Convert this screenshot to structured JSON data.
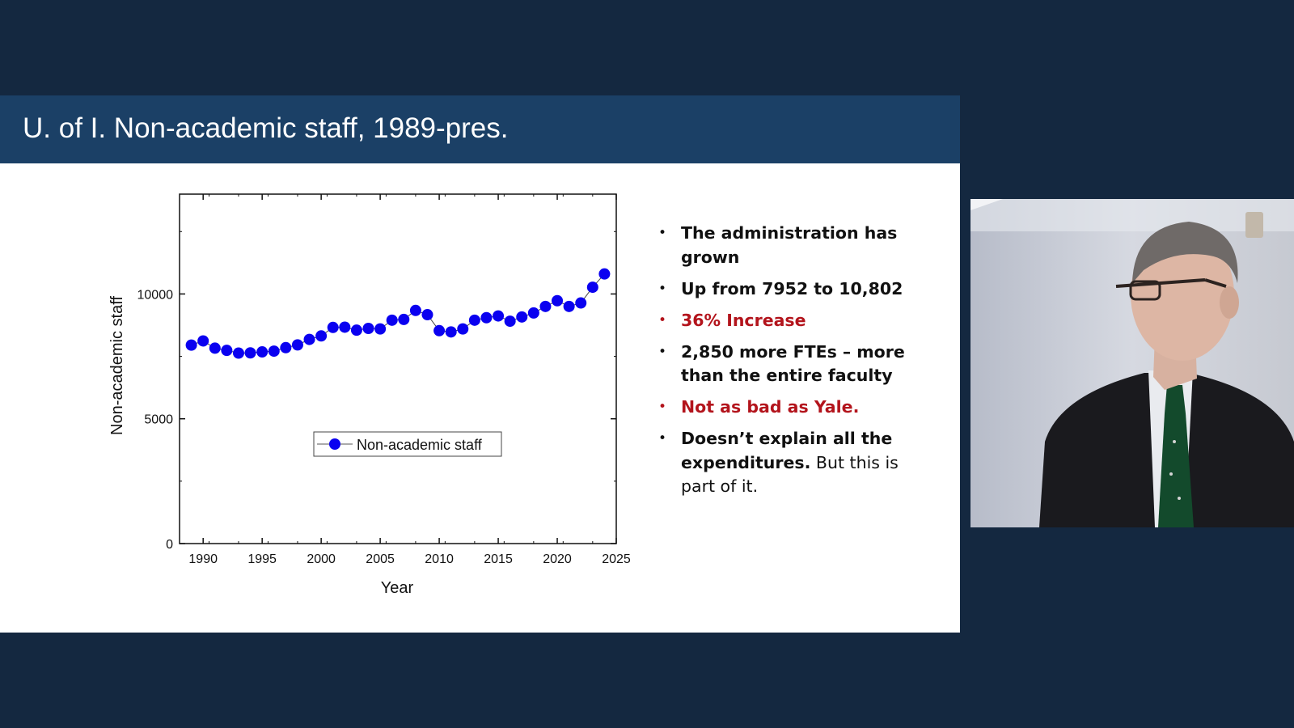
{
  "slide": {
    "title": "U. of I. Non-academic staff, 1989-pres."
  },
  "colors": {
    "background": "#142840",
    "title_bar": "#1b4066",
    "marker": "#0a00f0",
    "red_text": "#b3141c"
  },
  "bullets": [
    {
      "bold": "The administration has grown",
      "normal": "",
      "color": "dark"
    },
    {
      "bold": "Up from 7952 to 10,802",
      "normal": "",
      "color": "dark"
    },
    {
      "bold": "36% Increase",
      "normal": "",
      "color": "red"
    },
    {
      "bold": "2,850 more FTEs – more than the entire faculty",
      "normal": "",
      "color": "dark"
    },
    {
      "bold": "Not as bad as Yale.",
      "normal": "",
      "color": "red"
    },
    {
      "bold": "Doesn’t explain all the expenditures.",
      "normal": " But this is part of it.",
      "color": "dark"
    }
  ],
  "chart_data": {
    "type": "line",
    "xlabel": "Year",
    "ylabel": "Non-academic staff",
    "xlim": [
      1988,
      2025
    ],
    "ylim": [
      0,
      14000
    ],
    "x_ticks": [
      1990,
      1995,
      2000,
      2005,
      2010,
      2015,
      2020,
      2025
    ],
    "y_ticks": [
      0,
      5000,
      10000
    ],
    "legend": "center",
    "grid": false,
    "series": [
      {
        "name": "Non-academic staff",
        "marker": "circle",
        "x": [
          1989,
          1990,
          1991,
          1992,
          1993,
          1994,
          1995,
          1996,
          1997,
          1998,
          1999,
          2000,
          2001,
          2002,
          2003,
          2004,
          2005,
          2006,
          2007,
          2008,
          2009,
          2010,
          2011,
          2012,
          2013,
          2014,
          2015,
          2016,
          2017,
          2018,
          2019,
          2020,
          2021,
          2022,
          2023,
          2024
        ],
        "values": [
          7952,
          8120,
          7830,
          7740,
          7630,
          7640,
          7680,
          7710,
          7850,
          7960,
          8180,
          8320,
          8660,
          8670,
          8550,
          8620,
          8600,
          8950,
          8980,
          9340,
          9170,
          8530,
          8480,
          8600,
          8950,
          9050,
          9120,
          8910,
          9080,
          9240,
          9500,
          9730,
          9500,
          9640,
          10270,
          10802
        ]
      }
    ]
  }
}
